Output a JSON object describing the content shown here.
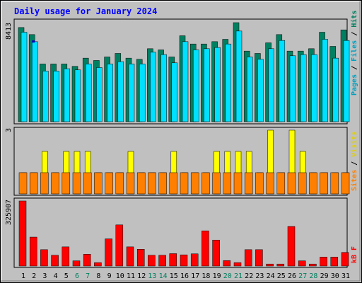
{
  "chart": {
    "title": "Daily usage for January 2024",
    "days": [
      "1",
      "2",
      "3",
      "4",
      "5",
      "6",
      "7",
      "8",
      "9",
      "10",
      "11",
      "12",
      "13",
      "14",
      "15",
      "16",
      "17",
      "18",
      "19",
      "20",
      "21",
      "22",
      "23",
      "24",
      "25",
      "26",
      "27",
      "28",
      "29",
      "30",
      "31"
    ],
    "weekend_days": [
      "6",
      "7",
      "13",
      "14",
      "20",
      "21",
      "27",
      "28"
    ],
    "top_panel": {
      "max_label": "8413",
      "legend": [
        "Pages",
        "Files",
        "Hits"
      ]
    },
    "middle_panel": {
      "max_label": "3",
      "legend": [
        "Sites",
        "Visits"
      ]
    },
    "bottom_panel": {
      "max_label": "325907",
      "legend": [
        "kB F"
      ]
    }
  },
  "chart_data": [
    {
      "type": "bar",
      "panel": "top",
      "categories": [
        "1",
        "2",
        "3",
        "4",
        "5",
        "6",
        "7",
        "8",
        "9",
        "10",
        "11",
        "12",
        "13",
        "14",
        "15",
        "16",
        "17",
        "18",
        "19",
        "20",
        "21",
        "22",
        "23",
        "24",
        "25",
        "26",
        "27",
        "28",
        "29",
        "30",
        "31"
      ],
      "ylim": [
        0,
        8413
      ],
      "series": [
        {
          "name": "Hits",
          "color": "#008060",
          "values": [
            8000,
            7400,
            4900,
            4900,
            4900,
            4700,
            5400,
            5200,
            5500,
            5800,
            5400,
            5300,
            6200,
            6100,
            5500,
            7300,
            6600,
            6600,
            6800,
            7000,
            8413,
            6000,
            5800,
            6700,
            7400,
            6000,
            6000,
            6200,
            7600,
            6400,
            7800
          ]
        },
        {
          "name": "Files",
          "color": "#00e0ff",
          "values": [
            7600,
            6800,
            4300,
            4300,
            4500,
            4400,
            4900,
            4600,
            4900,
            5100,
            4900,
            4900,
            5900,
            5700,
            5000,
            6800,
            6100,
            6200,
            6300,
            6600,
            7700,
            5500,
            5300,
            6200,
            6900,
            5600,
            5700,
            5700,
            7000,
            5400,
            6900
          ]
        },
        {
          "name": "Pages",
          "color": "#0000c0",
          "values": [
            0,
            6900,
            0,
            0,
            0,
            0,
            0,
            0,
            0,
            0,
            0,
            0,
            0,
            0,
            0,
            0,
            0,
            0,
            0,
            0,
            0,
            0,
            0,
            0,
            0,
            0,
            0,
            0,
            0,
            0,
            0
          ]
        }
      ]
    },
    {
      "type": "bar",
      "panel": "middle",
      "categories": [
        "1",
        "2",
        "3",
        "4",
        "5",
        "6",
        "7",
        "8",
        "9",
        "10",
        "11",
        "12",
        "13",
        "14",
        "15",
        "16",
        "17",
        "18",
        "19",
        "20",
        "21",
        "22",
        "23",
        "24",
        "25",
        "26",
        "27",
        "28",
        "29",
        "30",
        "31"
      ],
      "ylim": [
        0,
        3
      ],
      "series": [
        {
          "name": "Visits",
          "color": "#ffff00",
          "values": [
            1,
            1,
            2,
            1,
            2,
            2,
            2,
            1,
            1,
            1,
            2,
            1,
            1,
            1,
            2,
            1,
            1,
            1,
            2,
            2,
            2,
            2,
            1,
            3,
            1,
            3,
            2,
            1,
            1,
            1,
            1
          ]
        },
        {
          "name": "Sites",
          "color": "#ff8000",
          "values": [
            1,
            1,
            1,
            1,
            1,
            1,
            1,
            1,
            1,
            1,
            1,
            1,
            1,
            1,
            1,
            1,
            1,
            1,
            1,
            1,
            1,
            1,
            1,
            1,
            1,
            1,
            1,
            1,
            1,
            1,
            1
          ]
        }
      ]
    },
    {
      "type": "bar",
      "panel": "bottom",
      "categories": [
        "1",
        "2",
        "3",
        "4",
        "5",
        "6",
        "7",
        "8",
        "9",
        "10",
        "11",
        "12",
        "13",
        "14",
        "15",
        "16",
        "17",
        "18",
        "19",
        "20",
        "21",
        "22",
        "23",
        "24",
        "25",
        "26",
        "27",
        "28",
        "29",
        "30",
        "31"
      ],
      "ylim": [
        0,
        325907
      ],
      "series": [
        {
          "name": "kB F",
          "color": "#ff0000",
          "values": [
            325907,
            145000,
            82000,
            54000,
            96000,
            26000,
            59000,
            17000,
            136000,
            206000,
            96000,
            84000,
            54000,
            54000,
            62000,
            56000,
            61000,
            176000,
            130000,
            27000,
            17000,
            82000,
            82000,
            10000,
            10000,
            198000,
            26000,
            10000,
            45000,
            45000,
            68000
          ]
        }
      ]
    }
  ]
}
